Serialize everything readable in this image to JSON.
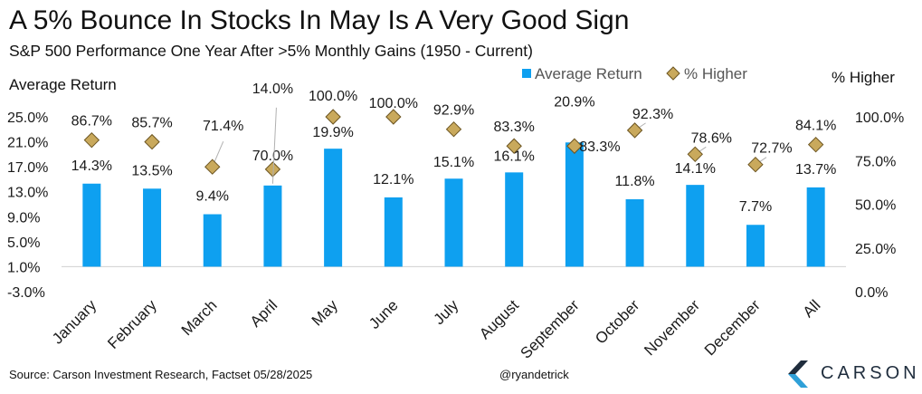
{
  "title": "A 5% Bounce In Stocks In May Is A Very Good Sign",
  "subtitle": "S&P 500 Performance One Year After >5% Monthly Gains (1950 - Current)",
  "footer": {
    "source": "Source: Carson Investment Research, Factset 05/28/2025",
    "handle": "@ryandetrick"
  },
  "logo": {
    "text": "CARSON",
    "mark_color_dark": "#1f2d3d",
    "mark_color_light": "#2fa0d8"
  },
  "colors": {
    "bar": "#0ea0f0",
    "marker": "#c9a95c",
    "marker_edge": "#6b5420",
    "text": "#1a1a1a"
  },
  "chart_data": {
    "type": "bar",
    "categories": [
      "January",
      "February",
      "March",
      "April",
      "May",
      "June",
      "July",
      "August",
      "September",
      "October",
      "November",
      "December",
      "All"
    ],
    "series": [
      {
        "name": "Average Return",
        "type": "bar",
        "axis": "left",
        "values": [
          14.3,
          13.5,
          9.4,
          14.0,
          19.9,
          12.1,
          15.1,
          16.1,
          20.9,
          11.8,
          14.1,
          7.7,
          13.7
        ],
        "labels": [
          "14.3%",
          "13.5%",
          "9.4%",
          "14.0%",
          "19.9%",
          "12.1%",
          "15.1%",
          "16.1%",
          "20.9%",
          "11.8%",
          "14.1%",
          "7.7%",
          "13.7%"
        ]
      },
      {
        "name": "% Higher",
        "type": "scatter",
        "marker": "diamond",
        "axis": "right",
        "values": [
          86.7,
          85.7,
          71.4,
          70.0,
          100.0,
          100.0,
          92.9,
          83.3,
          83.3,
          92.3,
          78.6,
          72.7,
          84.1
        ],
        "labels": [
          "86.7%",
          "85.7%",
          "71.4%",
          "70.0%",
          "100.0%",
          "100.0%",
          "92.9%",
          "83.3%",
          "83.3%",
          "92.3%",
          "78.6%",
          "72.7%",
          "84.1%"
        ]
      }
    ],
    "ylabel_left": "Average  Return",
    "ylabel_right": "% Higher",
    "ylim_left": [
      -3.0,
      25.0
    ],
    "ylim_right": [
      0,
      100
    ],
    "yticks_left": [
      "25.0%",
      "21.0%",
      "17.0%",
      "13.0%",
      "9.0%",
      "5.0%",
      "1.0%",
      "-3.0%"
    ],
    "yticks_right": [
      "100.0%",
      "75.0%",
      "50.0%",
      "25.0%",
      "0.0%"
    ],
    "legend_position": "top-center",
    "grid": false
  }
}
